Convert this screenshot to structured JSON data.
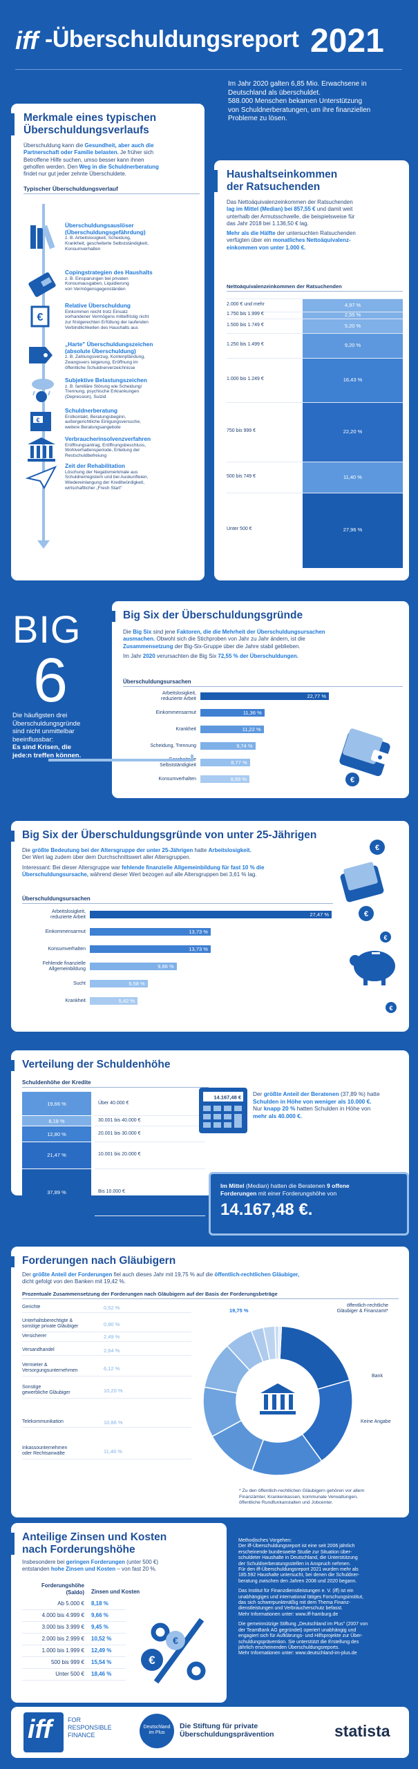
{
  "header": {
    "brand": "iff",
    "title": "-Überschuldungsreport",
    "year": "2021"
  },
  "intro": {
    "line1": "Im Jahr 2020 galten 6,85 Mio. Erwachsene in",
    "line2": "Deutschland als überschuldet.",
    "line3": "588.000 Menschen bekamen Unterstützung",
    "line4": "von Schuldnerberatungen, um ihre finanziellen",
    "line5": "Probleme zu lösen."
  },
  "merkmale": {
    "title1": "Merkmale eines typischen",
    "title2": "Überschuldungsverlaufs",
    "t1": "Überschuldung kann die ",
    "t1a": "Gesundheit, aber auch die",
    "t2a": "Partnerschaft oder Familie belasten.",
    "t2": " Je früher sich",
    "t3": "Betroffene Hilfe suchen, umso besser kann ihnen",
    "t4": "geholfen werden. Den ",
    "t4a": "Weg in die Schuldnerberatung",
    "t5": "findet nur gut jeder zehnte Überschuldete.",
    "sub": "Typischer Überschuldungsverlauf",
    "steps": [
      {
        "title": [
          "Überschuldungsauslöser",
          "(Überschuldungsgefährdung)"
        ],
        "desc": [
          "z. B. Arbeitslosigkeit, Scheidung,",
          "Krankheit, gescheiterte Selbstständigkeit,",
          "Konsumverhalten"
        ]
      },
      {
        "title": [
          "Copingstrategien des Haushalts"
        ],
        "desc": [
          "z. B. Einsparungen bei privaten",
          "Konsumausgaben, Liquidierung",
          "von Vermögensgegenständen"
        ]
      },
      {
        "title": [
          "Relative Überschuldung"
        ],
        "desc": [
          "Einkommen reicht trotz Einsatz",
          "vorhandener Vermögens mittelfristig nicht",
          "zur fristgerechten Erfüllung der laufenden",
          "Verbindlichkeiten des Haushalts aus"
        ]
      },
      {
        "title": [
          "„Harte\" Überschuldungszeichen",
          "(absolute Überschuldung)"
        ],
        "desc": [
          "z. B. Zahlungsverzug, Kontenpfändung,",
          "Zwangsvers teigerung, Eröffnung im",
          "öffentliche Schuldnerverzeichnisse"
        ]
      },
      {
        "title": [
          "Subjektive Belastungszeichen"
        ],
        "desc": [
          "z. B. familiäre Störung wie Scheidung/",
          "Trennung, psychische Erkrankungen",
          "(Depression), Suizid"
        ]
      },
      {
        "title": [
          "Schuldnerberatung"
        ],
        "desc": [
          "Erstkontakt, Beratungsbeginn,",
          "außergerichtliche Einigungsversuche,",
          "weitere Beratungsangebote"
        ]
      },
      {
        "title": [
          "Verbraucherinsolvenzverfahren"
        ],
        "desc": [
          "Eröffnungsantrag, Eröffnungsbeschluss,",
          "Wohlverhaltensperiode, Erteilung der",
          "Restschuldbefreiung"
        ]
      },
      {
        "title": [
          "Zeit der Rehabilitation"
        ],
        "desc": [
          "Löschung der Negativmerkmale aus",
          "Schuldnerregistern und bei Auskunfteien,",
          "Wiedereinlangung der Kreditwürdigkeit,",
          "wirtschaftlicher „Fresh Start\""
        ]
      }
    ]
  },
  "haushalt": {
    "title1": "Haushaltseinkommen",
    "title2": "der Ratsuchenden",
    "t1": "Das Nettoäquivalenzeinkommen der Ratsuchenden",
    "t2": "lag im Mittel (Median) bei 857,55 €",
    "t2b": " und damit weit",
    "t3": "unterhalb der Armutsschwelle, die beispielsweise für",
    "t4": "das Jahr 2018 bei 1.136,50 € lag.",
    "t5": "Mehr als die Hälfte",
    "t5b": " der untersuchten Ratsuchenden",
    "t6": "verfügten über ein ",
    "t6a": "monatliches Nettoäquivalenz-",
    "t7a": "einkommen von unter 1.000 €.",
    "sub": "Nettoäquivalenzeinkommen der Ratsuchenden"
  },
  "big6": {
    "big": "BIG",
    "six": "6",
    "side1": "Die häufigsten drei",
    "side2": "Überschuldungsgründe",
    "side3": "sind nicht unmittelbar",
    "side4": "beeinflussbar:",
    "side5": "Es sind Krisen, die",
    "side6": "jede:n treffen können.",
    "title": "Big Six der Überschuldungsgründe",
    "t1": "Die ",
    "t1a": "Big Six",
    "t1b": " sind jene ",
    "t1c": "Faktoren, die die Mehrheit der Überschuldungsursachen",
    "t2a": "ausmachen.",
    "t2": " Obwohl sich die Stichproben von Jahr zu Jahr ändern, ist die",
    "t3a": "Zusammensetzung",
    "t3": " der Big-Six-Gruppe über die Jahre stabil geblieben.",
    "t4": "Im Jahr ",
    "t4a": "2020",
    "t4b": " verursachten die Big Six ",
    "t4c": "72,55 % der Überschuldungen.",
    "t4d": "",
    "sub": "Überschuldungsursachen"
  },
  "u25": {
    "title": "Big Six der Überschuldungsgründe von unter 25-Jährigen",
    "t1": "Die ",
    "t1a": "größte Bedeutung bei der Altersgruppe der unter 25-Jährigen",
    "t1b": " hatte ",
    "t1c": "Arbeitslosigkeit.",
    "t2": "Der Wert lag zudem über dem Durchschnittswert aller Altersgruppen.",
    "t3": "Interessant: Bei dieser Altersgruppe war ",
    "t3a": "fehlende finanzielle Allgemeinbildung für fast 10 % die",
    "t4a": "Überschuldungsursache,",
    "t4": " während dieser Wert bezogen auf alle Altersgruppen bei 3,61 % lag.",
    "sub": "Überschuldungsursachen"
  },
  "schulden": {
    "title": "Verteilung der Schuldenhöhe",
    "sub": "Schuldenhöhe der Kredite",
    "t1": "Der ",
    "t1a": "größte Anteil der Beratenen",
    "t1b": " (37,89 %) hatte",
    "t2a": "Schulden in Höhe von weniger als 10.000 €.",
    "t3": "Nur ",
    "t3a": "knapp 20 %",
    "t3b": " hatten Schulden in Höhe von",
    "t4a": "mehr als 40.000 €.",
    "m1": "Im Mittel",
    "m1b": " (Median) hatten die Beratenen ",
    "m1c": "9 offene",
    "m2a": "Forderungen",
    "m2": " mit einer Forderungshöhe von",
    "m3": "14.167,48 €.",
    "calc": "14.167,48 €"
  },
  "glaeubiger": {
    "title": "Forderungen nach Gläubigern",
    "t1": "Der ",
    "t1a": "größte Anteil der Forderungen",
    "t1b": " fiel auch dieses Jahr mit 19,75 % auf die ",
    "t1c": "öffentlich-rechtlichen Gläubiger,",
    "t2": "dicht gefolgt von den Banken mit 19,42 %.",
    "sub": "Prozentuale Zusammensetzung der Forderungen nach Gläubigern auf der Basis der Forderungsbeträge",
    "foot1": "* Zu den öffentlich-rechtlichen Gläubigern gehören vor allem",
    "foot2": "Finanzämter, Krankenkassen, kommunale Verwaltungen,",
    "foot3": "öffentliche Rundfunkanstalten und Jobcenter."
  },
  "zinsen": {
    "title1": "Anteilige Zinsen und Kosten",
    "title2": "nach Forderungshöhe",
    "t1": "Insbesondere bei ",
    "t1a": "geringen Forderungen",
    "t1b": " (unter 500 €)",
    "t2": "entstanden ",
    "t2a": "hohe Zinsen und Kosten",
    "t2b": " – von fast 20 %.",
    "col1a": "Forderungshöhe",
    "col1b": "(Saldo)",
    "col2": "Zinsen und Kosten",
    "rows": [
      [
        "Ab 5.000 €",
        "8,18 %"
      ],
      [
        "4.000 bis 4.999 €",
        "9,66 %"
      ],
      [
        "3.000 bis 3.999 €",
        "9,45 %"
      ],
      [
        "2.000 bis 2.999 €",
        "10,52 %"
      ],
      [
        "1.000 bis 1.999 €",
        "12,49 %"
      ],
      [
        "500 bis 999 €",
        "15,54 %"
      ],
      [
        "Unter 500 €",
        "18,46 %"
      ]
    ]
  },
  "method": {
    "p1": [
      "Methodisches Vorgehen:",
      "Der iff-Überschuldungsreport ist eine seit 2006 jährlich",
      "erscheinende bundesweite Studie zur Situation über-",
      "schuldeter Haushalte in Deutschland, die Unterstützung",
      "der Schuldnerberatungsstellen in Anspruch nehmen.",
      "Für den iff-Überschuldungsreport 2021 wurden mehr als",
      "185.592 Haushalte untersucht, bei denen die Schuldner-",
      "beratung zwischen den Jahren 2008 und 2020 begann."
    ],
    "p2": [
      "Das Institut für Finanzdienstleistungen e. V. (iff) ist ein",
      "unabhängiges und international tätiges Forschungsinstitut,",
      "das sich schwerpunktmäßig mit dem Thema Finanz-",
      "dienstleistungen und Verbraucherschutz befasst.",
      "Mehr Informationen unter: www.iff-hamburg.de"
    ],
    "p3": [
      "Die gemeinnützige Stiftung „Deutschland im Plus\" (2007 von",
      "der TeamBank AG gegründet) operiert unabhängig und",
      "engagiert sich für Aufklärungs- und Hilfsprojekte zur Über-",
      "schuldungsprävention. Sie unterstützt die Erstellung des",
      "jährlich erscheinenden Überschuldungsreports.",
      "Mehr Informationen unter: www.deutschland-im-plus.de"
    ]
  },
  "footer": {
    "iff": "iff",
    "for": "FOR",
    "resp": "RESPONSIBLE",
    "fin": "FINANCE",
    "stift1": "Die Stiftung für private",
    "stift2": "Überschuldungsprävention",
    "dip1": "Deutschland",
    "dip2": "im Plus",
    "statista": "statista"
  },
  "chart_data": [
    {
      "type": "bar",
      "title": "Nettoäquivalenzeinkommen der Ratsuchenden",
      "categories": [
        "2.000 € und mehr",
        "1.750 bis 1.999 €",
        "1.500 bis 1.749 €",
        "1.250 bis 1.499 €",
        "1.000 bis 1.249 €",
        "750 bis 999 €",
        "500 bis 749 €",
        "Unter 500 €"
      ],
      "values": [
        4.97,
        2.55,
        5.2,
        9.2,
        16.43,
        22.2,
        11.4,
        27.96
      ],
      "labels": [
        "4,97 %",
        "2,55 %",
        "5,20 %",
        "9,20 %",
        "16,43 %",
        "22,20 %",
        "11,40 %",
        "27,96 %"
      ],
      "unit": "%"
    },
    {
      "type": "bar",
      "title": "Überschuldungsursachen",
      "categories": [
        "Arbeitslosigkeit, reduzierte Arbeit",
        "Einkommensarmut",
        "Krankheit",
        "Scheidung, Trennung",
        "Gescheiterte Selbstständigkeit",
        "Konsumverhalten"
      ],
      "values": [
        22.77,
        11.36,
        11.22,
        9.74,
        8.77,
        8.69
      ],
      "labels": [
        "22,77 %",
        "11,36 %",
        "11,22 %",
        "9,74 %",
        "8,77 %",
        "8,69 %"
      ],
      "xlim": [
        0,
        22.77
      ]
    },
    {
      "type": "bar",
      "title": "Überschuldungsursachen unter 25-Jährige",
      "categories": [
        "Arbeitslosigkeit, reduzierte Arbeit",
        "Einkommensarmut",
        "Konsumverhalten",
        "Fehlende finanzielle Allgemeinbildung",
        "Sucht",
        "Krankheit"
      ],
      "values": [
        27.47,
        13.73,
        13.73,
        9.86,
        6.58,
        5.42
      ],
      "labels": [
        "27,47 %",
        "13,73 %",
        "13,73 %",
        "9,86 %",
        "6,58 %",
        "5,42 %"
      ],
      "xlim": [
        0,
        27.47
      ]
    },
    {
      "type": "bar",
      "title": "Schuldenhöhe der Kredite",
      "categories": [
        "Über 40.000 €",
        "30.001 bis 40.000 €",
        "20.001 bis 30.000 €",
        "10.001 bis 20.000 €",
        "Bis 10.000 €"
      ],
      "values": [
        19.66,
        8.18,
        12.8,
        21.47,
        37.89
      ],
      "labels": [
        "19,66 %",
        "8,18 %",
        "12,80 %",
        "21,47 %",
        "37,89 %"
      ]
    },
    {
      "type": "pie",
      "title": "Forderungen nach Gläubigern",
      "categories": [
        "Gerichte",
        "Unterhaltsberechtigte & sonstige private Gläubiger",
        "Versicherer",
        "Versandhandel",
        "Vermieter & Versorgungsunternehmen",
        "Sonstige gewerbliche Gläubiger",
        "Telekommunikation",
        "Inkassounternehmen oder Rechtsanwälte",
        "öffentlich-rechtliche Gläubiger & Finanzamt*",
        "Bank",
        "Keine Angabe"
      ],
      "values": [
        0.52,
        0.9,
        2.49,
        2.64,
        6.12,
        10.2,
        10.86,
        11.46,
        19.75,
        19.42,
        15.62
      ],
      "labels": [
        "0,52 %",
        "0,90 %",
        "2,49 %",
        "2,64 %",
        "6,12 %",
        "10,20 %",
        "10,86 %",
        "11,46 %",
        "19,75 %",
        "19,42 %",
        "15,62 %"
      ]
    }
  ]
}
